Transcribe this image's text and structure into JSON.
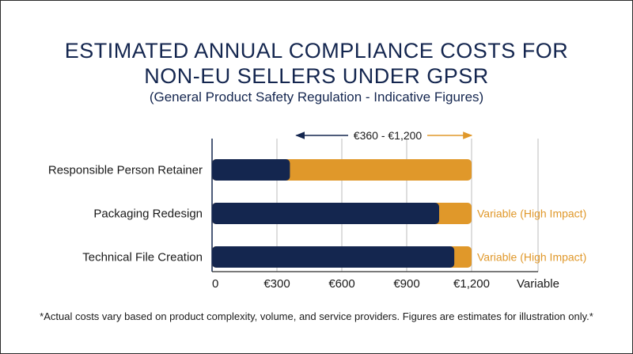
{
  "colors": {
    "navy": "#14264f",
    "orange": "#e0982a",
    "axis": "#333333"
  },
  "chart_data": {
    "type": "bar",
    "orientation": "horizontal",
    "stacked": true,
    "title_lines": [
      "ESTIMATED ANNUAL COMPLIANCE COSTS FOR",
      "NON-EU SELLERS UNDER GPSR"
    ],
    "subtitle": "(General Product Safety Regulation - Indicative Figures)",
    "categories": [
      "Responsible Person Retainer",
      "Packaging Redesign",
      "Technical File Creation"
    ],
    "series": [
      {
        "values": [
          360,
          1050,
          1120
        ],
        "color": "#14264f"
      },
      {
        "values": [
          840,
          150,
          80
        ],
        "color": "#e0982a"
      }
    ],
    "bar_notes": [
      "",
      "Variable (High Impact)",
      "Variable (High Impact)"
    ],
    "range_annotation": "€360 - €1,200",
    "range_annotation_span": [
      360,
      1200
    ],
    "xticks": [
      {
        "value": 0,
        "label": "0"
      },
      {
        "value": 300,
        "label": "€300"
      },
      {
        "value": 600,
        "label": "€600"
      },
      {
        "value": 900,
        "label": "€900"
      },
      {
        "value": 1200,
        "label": "€1,200"
      },
      {
        "value": 1500,
        "label": "Variable"
      }
    ],
    "xlim": [
      0,
      1500
    ],
    "grid": "vertical",
    "footnote": "*Actual costs vary based on product complexity, volume, and service providers. Figures are estimates for illustration only.*"
  }
}
